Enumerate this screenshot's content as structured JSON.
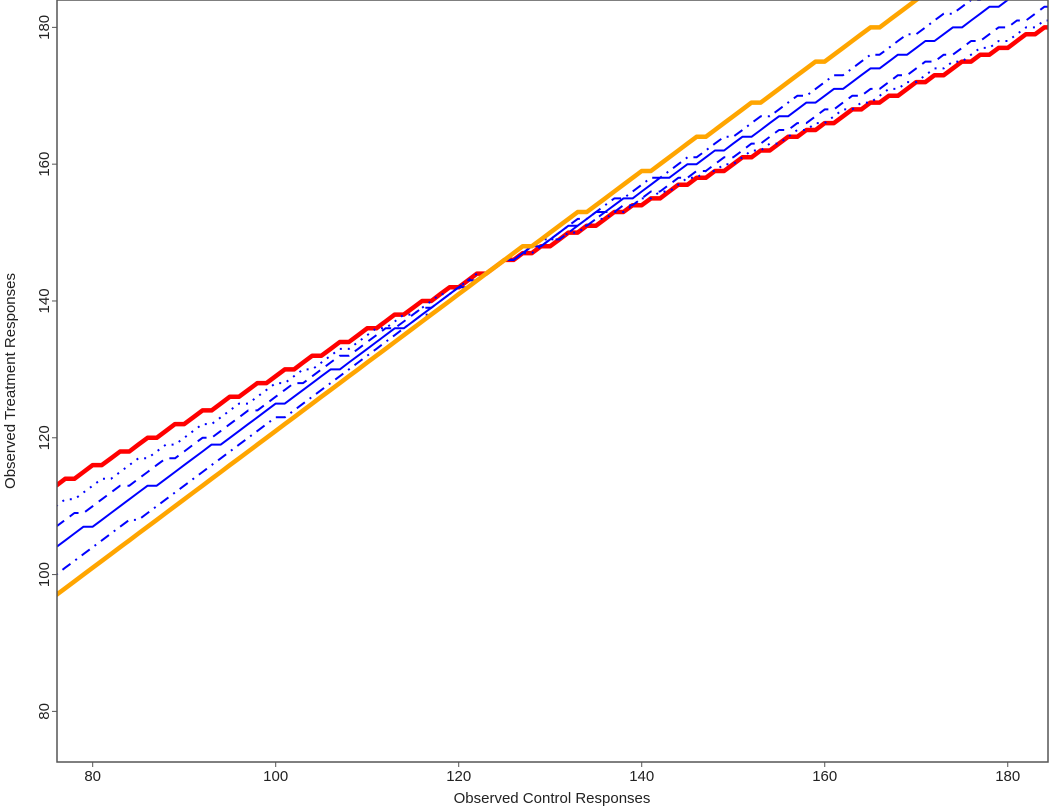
{
  "chart_data": {
    "type": "line",
    "title": "",
    "xlabel": "Observed Control Responses",
    "ylabel": "Observed Treatment Responses",
    "xlim": [
      76.1,
      184.4
    ],
    "ylim": [
      72.6,
      184
    ],
    "xticks": [
      80,
      100,
      120,
      140,
      160,
      180
    ],
    "yticks": [
      80,
      100,
      120,
      140,
      160,
      180
    ],
    "grid": false,
    "legend": "none",
    "series": [
      {
        "color": "#ff0000",
        "linestyle": "solid",
        "weight": "thick",
        "points": [
          [
            76,
            113
          ],
          [
            124,
            145
          ],
          [
            184.4,
            180
          ]
        ]
      },
      {
        "color": "#0000ff",
        "linestyle": "dotted",
        "weight": "thin",
        "points": [
          [
            76,
            110
          ],
          [
            124,
            145
          ],
          [
            184.4,
            181
          ]
        ]
      },
      {
        "color": "#0000ff",
        "linestyle": "dashed",
        "weight": "thin",
        "points": [
          [
            76,
            107
          ],
          [
            124,
            145
          ],
          [
            184.4,
            183
          ]
        ]
      },
      {
        "color": "#0000ff",
        "linestyle": "solid",
        "weight": "thin",
        "points": [
          [
            76,
            104
          ],
          [
            124,
            145
          ],
          [
            184.4,
            187
          ]
        ]
      },
      {
        "color": "#0000ff",
        "linestyle": "dotdash",
        "weight": "thin",
        "points": [
          [
            76,
            100
          ],
          [
            124,
            145
          ],
          [
            184.4,
            190
          ]
        ]
      },
      {
        "color": "#ffa500",
        "linestyle": "solid",
        "weight": "thick",
        "points": [
          [
            76,
            97
          ],
          [
            124,
            145
          ],
          [
            184.4,
            196
          ]
        ]
      }
    ]
  }
}
